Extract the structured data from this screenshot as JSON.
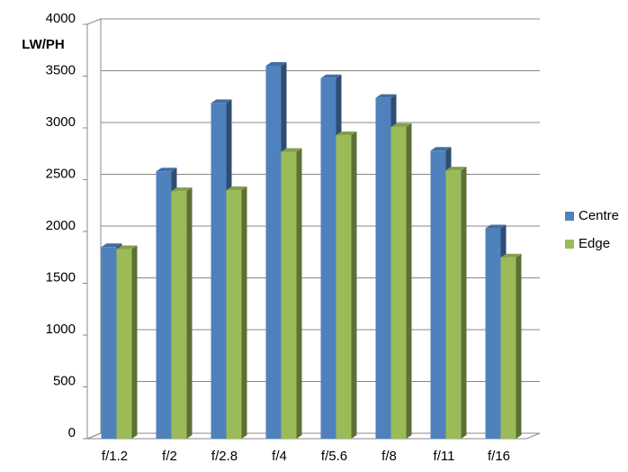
{
  "chart_data": {
    "type": "bar3d",
    "y_label": "LW/PH",
    "categories": [
      "f/1.2",
      "f/2",
      "f/2.8",
      "f/4",
      "f/5.6",
      "f/8",
      "f/11",
      "f/16"
    ],
    "series": [
      {
        "name": "Centre",
        "color": "#4f81bd",
        "values": [
          1850,
          2580,
          3240,
          3600,
          3480,
          3290,
          2780,
          2030
        ]
      },
      {
        "name": "Edge",
        "color": "#9bbb59",
        "values": [
          1830,
          2390,
          2400,
          2770,
          2930,
          3010,
          2590,
          1750
        ]
      }
    ],
    "ylim": [
      0,
      4000
    ],
    "yticks": [
      0,
      500,
      1000,
      1500,
      2000,
      2500,
      3000,
      3500,
      4000
    ],
    "grid": true
  }
}
